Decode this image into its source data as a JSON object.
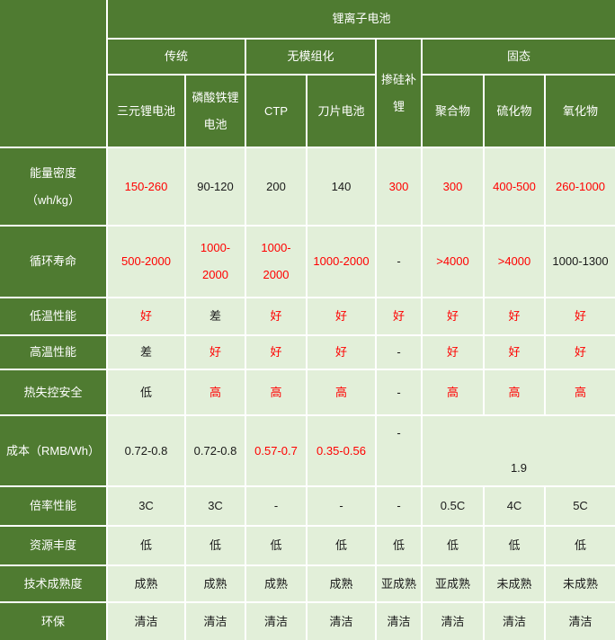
{
  "colors": {
    "header_green": "#4f7b31",
    "cell_light_green": "#e2efd9",
    "gridline_white": "#ffffff",
    "value_red": "#ff0000",
    "value_black": "#1a1a1a"
  },
  "chart_data": {
    "type": "table",
    "title": "锂离子电池",
    "column_groups": [
      {
        "label": "传统",
        "span": 2
      },
      {
        "label": "无模组化",
        "span": 2
      },
      {
        "label": "掺硅补\n锂",
        "span": 1
      },
      {
        "label": "固态",
        "span": 3
      }
    ],
    "sub_columns": [
      "三元锂电池",
      "磷酸铁锂\n电池",
      "CTP",
      "刀片电池",
      "聚合物",
      "硫化物",
      "氧化物"
    ],
    "rows": [
      {
        "label": "能量密度\n（wh/kg）",
        "cells": [
          {
            "text": "150-260",
            "color": "red"
          },
          {
            "text": "90-120",
            "color": "black"
          },
          {
            "text": "200",
            "color": "black"
          },
          {
            "text": "140",
            "color": "black"
          },
          {
            "text": "300",
            "color": "red"
          },
          {
            "text": "300",
            "color": "red"
          },
          {
            "text": "400-500",
            "color": "red"
          },
          {
            "text": "260-1000",
            "color": "red"
          }
        ]
      },
      {
        "label": "循环寿命",
        "cells": [
          {
            "text": "500-2000",
            "color": "red"
          },
          {
            "text": "1000-\n2000",
            "color": "red"
          },
          {
            "text": "1000-\n2000",
            "color": "red"
          },
          {
            "text": "1000-2000",
            "color": "red"
          },
          {
            "text": "-",
            "color": "black"
          },
          {
            "text": ">4000",
            "color": "red"
          },
          {
            "text": ">4000",
            "color": "red"
          },
          {
            "text": "1000-1300",
            "color": "black"
          }
        ]
      },
      {
        "label": "低温性能",
        "cells": [
          {
            "text": "好",
            "color": "red"
          },
          {
            "text": "差",
            "color": "black"
          },
          {
            "text": "好",
            "color": "red"
          },
          {
            "text": "好",
            "color": "red"
          },
          {
            "text": "好",
            "color": "red"
          },
          {
            "text": "好",
            "color": "red"
          },
          {
            "text": "好",
            "color": "red"
          },
          {
            "text": "好",
            "color": "red"
          }
        ]
      },
      {
        "label": "高温性能",
        "cells": [
          {
            "text": "差",
            "color": "black"
          },
          {
            "text": "好",
            "color": "red"
          },
          {
            "text": "好",
            "color": "red"
          },
          {
            "text": "好",
            "color": "red"
          },
          {
            "text": "-",
            "color": "black"
          },
          {
            "text": "好",
            "color": "red"
          },
          {
            "text": "好",
            "color": "red"
          },
          {
            "text": "好",
            "color": "red"
          }
        ]
      },
      {
        "label": "热失控安全",
        "cells": [
          {
            "text": "低",
            "color": "black"
          },
          {
            "text": "高",
            "color": "red"
          },
          {
            "text": "高",
            "color": "red"
          },
          {
            "text": "高",
            "color": "red"
          },
          {
            "text": "-",
            "color": "black"
          },
          {
            "text": "高",
            "color": "red"
          },
          {
            "text": "高",
            "color": "red"
          },
          {
            "text": "高",
            "color": "red"
          }
        ]
      },
      {
        "label": "成本（RMB/Wh）",
        "cells": [
          {
            "text": "0.72-0.8",
            "color": "black"
          },
          {
            "text": "0.72-0.8",
            "color": "black"
          },
          {
            "text": "0.57-0.7",
            "color": "red"
          },
          {
            "text": "0.35-0.56",
            "color": "red"
          },
          {
            "text": "-",
            "color": "black"
          },
          {
            "text": "1.9",
            "color": "black",
            "span": 3
          }
        ]
      },
      {
        "label": "倍率性能",
        "cells": [
          {
            "text": "3C",
            "color": "black"
          },
          {
            "text": "3C",
            "color": "black"
          },
          {
            "text": "-",
            "color": "black"
          },
          {
            "text": "-",
            "color": "black"
          },
          {
            "text": "-",
            "color": "black"
          },
          {
            "text": "0.5C",
            "color": "black"
          },
          {
            "text": "4C",
            "color": "black"
          },
          {
            "text": "5C",
            "color": "black"
          }
        ]
      },
      {
        "label": "资源丰度",
        "cells": [
          {
            "text": "低",
            "color": "black"
          },
          {
            "text": "低",
            "color": "black"
          },
          {
            "text": "低",
            "color": "black"
          },
          {
            "text": "低",
            "color": "black"
          },
          {
            "text": "低",
            "color": "black"
          },
          {
            "text": "低",
            "color": "black"
          },
          {
            "text": "低",
            "color": "black"
          },
          {
            "text": "低",
            "color": "black"
          }
        ]
      },
      {
        "label": "技术成熟度",
        "cells": [
          {
            "text": "成熟",
            "color": "black"
          },
          {
            "text": "成熟",
            "color": "black"
          },
          {
            "text": "成熟",
            "color": "black"
          },
          {
            "text": "成熟",
            "color": "black"
          },
          {
            "text": "亚成熟",
            "color": "black"
          },
          {
            "text": "亚成熟",
            "color": "black"
          },
          {
            "text": "未成熟",
            "color": "black"
          },
          {
            "text": "未成熟",
            "color": "black"
          }
        ]
      },
      {
        "label": "环保",
        "cells": [
          {
            "text": "清洁",
            "color": "black"
          },
          {
            "text": "清洁",
            "color": "black"
          },
          {
            "text": "清洁",
            "color": "black"
          },
          {
            "text": "清洁",
            "color": "black"
          },
          {
            "text": "清洁",
            "color": "black"
          },
          {
            "text": "清洁",
            "color": "black"
          },
          {
            "text": "清洁",
            "color": "black"
          },
          {
            "text": "清洁",
            "color": "black"
          }
        ]
      }
    ]
  }
}
